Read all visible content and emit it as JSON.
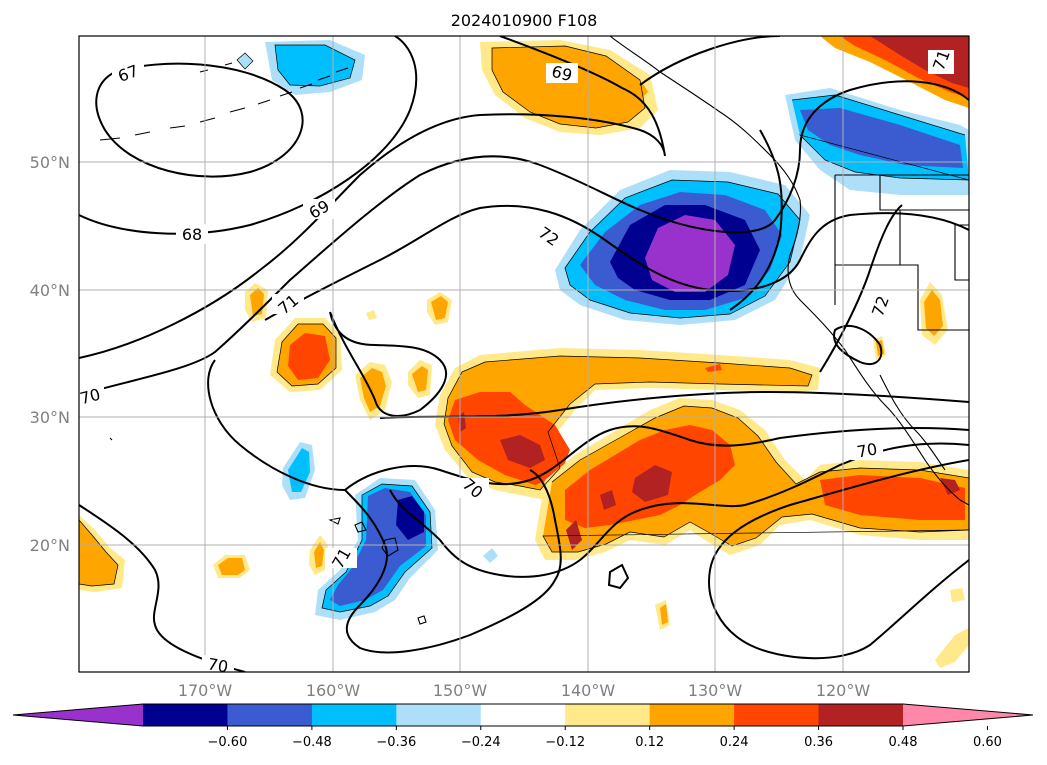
{
  "title": "2024010900 F108",
  "lat_labels": [
    "50°N",
    "40°N",
    "30°N",
    "20°N"
  ],
  "lon_labels": [
    "170°W",
    "160°W",
    "150°W",
    "140°W",
    "130°W",
    "120°W"
  ],
  "contour_labels": [
    "67",
    "68",
    "69",
    "69",
    "71",
    "72",
    "72",
    "70",
    "70",
    "71",
    "70",
    "70",
    "71"
  ],
  "colorbar": {
    "colors": [
      "#9932CC",
      "#000090",
      "#3A5CD0",
      "#00BFFF",
      "#ADE0F8",
      "#FFFFFF",
      "#FFE98A",
      "#FFA500",
      "#FF4500",
      "#B22222",
      "#FF88AA"
    ],
    "tick_labels": [
      "−0.60",
      "−0.48",
      "−0.36",
      "−0.24",
      "−0.12",
      "0.12",
      "0.24",
      "0.36",
      "0.48",
      "0.60"
    ]
  },
  "colors": {
    "coast": "#000000",
    "grid": "#b0b0b0"
  }
}
